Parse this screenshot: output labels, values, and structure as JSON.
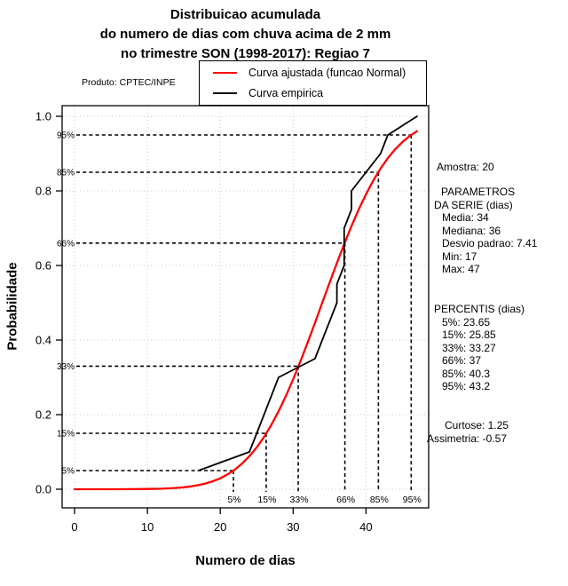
{
  "title": {
    "line1": "Distribuicao acumulada",
    "line2": "do numero de dias com chuva acima de 2 mm",
    "line3": "no trimestre SON (1998-2017): Regiao 7"
  },
  "produto_label": "Produto: CPTEC/INPE",
  "legend": {
    "items": [
      {
        "label": "Curva ajustada (funcao Normal)",
        "color": "#ff0000"
      },
      {
        "label": "Curva empirica",
        "color": "#000000"
      }
    ]
  },
  "axes": {
    "x_label": "Numero de dias",
    "y_label": "Probabilidade",
    "x_ticks": [
      "0",
      "10",
      "20",
      "30",
      "40"
    ],
    "y_ticks": [
      "0.0",
      "0.2",
      "0.4",
      "0.6",
      "0.8",
      "1.0"
    ]
  },
  "side_panel": {
    "amostra": "Amostra: 20",
    "params_line1": "PARAMETROS",
    "params_line2": "DA SERIE (dias)",
    "media": "Media: 34",
    "mediana": "Mediana: 36",
    "desvio": "Desvio padrao: 7.41",
    "min": "Min: 17",
    "max": "Max: 47",
    "percentis_header": "PERCENTIS (dias)",
    "p5": "5%: 23.65",
    "p15": "15%: 25.85",
    "p33": "33%: 33.27",
    "p66": "66%: 37",
    "p85": "85%: 40.3",
    "p95": "95%: 43.2",
    "curtose": "Curtose: 1.25",
    "assimetria": "Assimetria: -0.57"
  },
  "chart_data": {
    "type": "line",
    "title": "Distribuicao acumulada do numero de dias com chuva acima de 2 mm no trimestre SON (1998-2017): Regiao 7",
    "xlabel": "Numero de dias",
    "ylabel": "Probabilidade",
    "x_range": [
      0,
      47
    ],
    "y_range": [
      0,
      1
    ],
    "x_ticks": [
      0,
      10,
      20,
      30,
      40
    ],
    "y_ticks": [
      0.0,
      0.2,
      0.4,
      0.6,
      0.8,
      1.0
    ],
    "grid": true,
    "legend_position": "top",
    "colors": {
      "grid": "#c8c8c8",
      "axis": "#000000",
      "guides": "#000000"
    },
    "sample_size": 20,
    "normal_fit": {
      "mean": 34,
      "sd": 7.41
    },
    "series": [
      {
        "name": "Curva ajustada (funcao Normal)",
        "color": "#ff0000",
        "points": [
          [
            0,
            0.0
          ],
          [
            4,
            0.0
          ],
          [
            6,
            0.0001
          ],
          [
            8,
            0.0002
          ],
          [
            10,
            0.0006
          ],
          [
            12,
            0.0015
          ],
          [
            13,
            0.0023
          ],
          [
            14,
            0.0035
          ],
          [
            15,
            0.0052
          ],
          [
            16,
            0.0076
          ],
          [
            17,
            0.0109
          ],
          [
            18,
            0.0154
          ],
          [
            19,
            0.0215
          ],
          [
            20,
            0.0294
          ],
          [
            21,
            0.0397
          ],
          [
            22,
            0.0527
          ],
          [
            23,
            0.0689
          ],
          [
            24,
            0.0885
          ],
          [
            25,
            0.1122
          ],
          [
            26,
            0.1401
          ],
          [
            27,
            0.1724
          ],
          [
            28,
            0.209
          ],
          [
            29,
            0.2498
          ],
          [
            30,
            0.2946
          ],
          [
            31,
            0.3428
          ],
          [
            32,
            0.3936
          ],
          [
            33,
            0.4463
          ],
          [
            34,
            0.5
          ],
          [
            35,
            0.5537
          ],
          [
            36,
            0.6064
          ],
          [
            37,
            0.6572
          ],
          [
            38,
            0.7054
          ],
          [
            39,
            0.7502
          ],
          [
            40,
            0.791
          ],
          [
            41,
            0.8276
          ],
          [
            42,
            0.8599
          ],
          [
            43,
            0.8878
          ],
          [
            44,
            0.9115
          ],
          [
            45,
            0.9311
          ],
          [
            46,
            0.9473
          ],
          [
            47,
            0.9603
          ]
        ]
      },
      {
        "name": "Curva empirica",
        "color": "#000000",
        "points": [
          [
            17,
            0.05
          ],
          [
            24,
            0.1
          ],
          [
            25,
            0.15
          ],
          [
            26,
            0.2
          ],
          [
            27,
            0.25
          ],
          [
            28,
            0.3
          ],
          [
            33,
            0.35
          ],
          [
            34,
            0.4
          ],
          [
            35,
            0.45
          ],
          [
            36,
            0.5
          ],
          [
            36,
            0.55
          ],
          [
            37,
            0.6
          ],
          [
            37,
            0.65
          ],
          [
            37,
            0.7
          ],
          [
            38,
            0.75
          ],
          [
            38,
            0.8
          ],
          [
            40,
            0.85
          ],
          [
            42,
            0.9
          ],
          [
            43,
            0.95
          ],
          [
            47,
            1.0
          ]
        ]
      }
    ],
    "percentile_guides": [
      {
        "label": "5%",
        "level": 0.05,
        "x_value": 21.8
      },
      {
        "label": "15%",
        "level": 0.15,
        "x_value": 26.3
      },
      {
        "label": "33%",
        "level": 0.33,
        "x_value": 30.7
      },
      {
        "label": "66%",
        "level": 0.66,
        "x_value": 37.1
      },
      {
        "label": "85%",
        "level": 0.85,
        "x_value": 41.7
      },
      {
        "label": "95%",
        "level": 0.95,
        "x_value": 46.2
      }
    ]
  }
}
